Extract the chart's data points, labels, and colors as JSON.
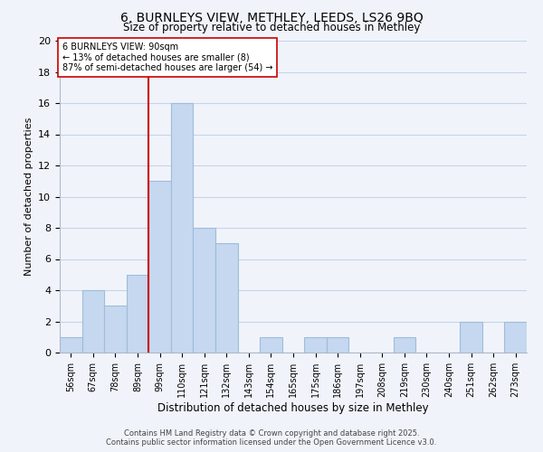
{
  "title": "6, BURNLEYS VIEW, METHLEY, LEEDS, LS26 9BQ",
  "subtitle": "Size of property relative to detached houses in Methley",
  "xlabel": "Distribution of detached houses by size in Methley",
  "ylabel": "Number of detached properties",
  "bar_labels": [
    "56sqm",
    "67sqm",
    "78sqm",
    "89sqm",
    "99sqm",
    "110sqm",
    "121sqm",
    "132sqm",
    "143sqm",
    "154sqm",
    "165sqm",
    "175sqm",
    "186sqm",
    "197sqm",
    "208sqm",
    "219sqm",
    "230sqm",
    "240sqm",
    "251sqm",
    "262sqm",
    "273sqm"
  ],
  "bar_values": [
    1,
    4,
    3,
    5,
    11,
    16,
    8,
    7,
    0,
    1,
    0,
    1,
    1,
    0,
    0,
    1,
    0,
    0,
    2,
    0,
    2
  ],
  "bar_color": "#c5d8f0",
  "bar_edgecolor": "#a0bcd8",
  "vline_x_index": 3.5,
  "vline_color": "#cc0000",
  "annotation_text": "6 BURNLEYS VIEW: 90sqm\n← 13% of detached houses are smaller (8)\n87% of semi-detached houses are larger (54) →",
  "annotation_box_edgecolor": "#cc0000",
  "annotation_box_facecolor": "#ffffff",
  "ylim": [
    0,
    20
  ],
  "yticks": [
    0,
    2,
    4,
    6,
    8,
    10,
    12,
    14,
    16,
    18,
    20
  ],
  "footer1": "Contains HM Land Registry data © Crown copyright and database right 2025.",
  "footer2": "Contains public sector information licensed under the Open Government Licence v3.0.",
  "background_color": "#f0f4fa",
  "grid_color": "#c8d4e8"
}
